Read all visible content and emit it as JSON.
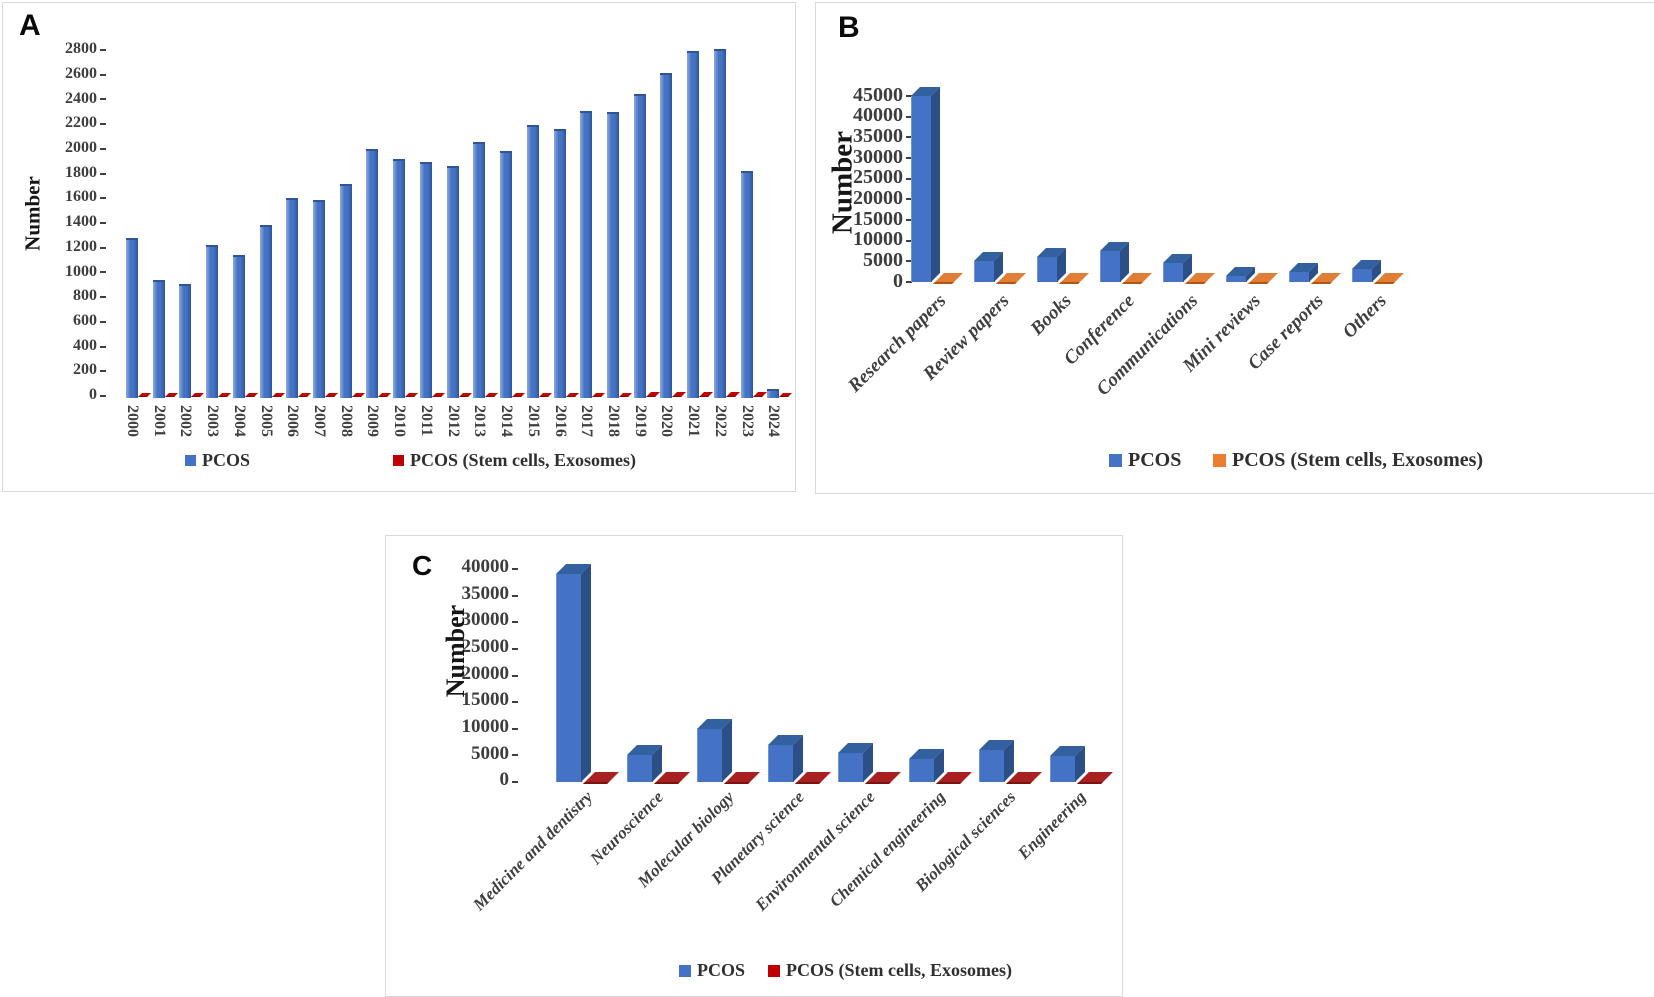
{
  "figure": {
    "panels": [
      "A",
      "B",
      "C"
    ],
    "y_axis_title": "Number",
    "legend_series_1": "PCOS",
    "legend_series_2": "PCOS (Stem cells, Exosomes)"
  },
  "colors": {
    "pcos_blue_front": "#4472C4",
    "pcos_blue_top": "#33619F",
    "pcos_blue_side": "#2B4F86",
    "stem_red": "#C00000",
    "stem_red_flat": "#A82020",
    "stem_red_flat_edge": "#7A1212",
    "stem_orange": "#ED7D31",
    "stem_orange_flat": "#E07E35",
    "stem_orange_flat_edge": "#B25514",
    "tick_text": "#3d3d3d",
    "panel_border": "#d9d9d9"
  },
  "chart_data": [
    {
      "id": "A",
      "panel_label": "A",
      "type": "bar",
      "ylabel": "Number",
      "xlabel": "",
      "ylim": [
        0,
        2800
      ],
      "ytick_step": 200,
      "grid": false,
      "legend_position": "bottom",
      "categories": [
        "2000",
        "2001",
        "2002",
        "2003",
        "2004",
        "2005",
        "2006",
        "2007",
        "2008",
        "2009",
        "2010",
        "2011",
        "2012",
        "2013",
        "2014",
        "2015",
        "2016",
        "2017",
        "2018",
        "2019",
        "2020",
        "2021",
        "2022",
        "2023",
        "2024"
      ],
      "series": [
        {
          "name": "PCOS",
          "color": "#4472C4",
          "values": [
            1280,
            940,
            910,
            1225,
            1145,
            1380,
            1600,
            1590,
            1715,
            2000,
            1915,
            1895,
            1865,
            2055,
            1980,
            2190,
            2160,
            2310,
            2300,
            2440,
            2610,
            2790,
            2805,
            1820,
            60
          ]
        },
        {
          "name": "PCOS (Stem cells, Exosomes)",
          "color": "#C00000",
          "values": [
            15,
            15,
            15,
            15,
            15,
            15,
            15,
            15,
            15,
            20,
            20,
            20,
            20,
            20,
            20,
            20,
            20,
            25,
            25,
            30,
            30,
            35,
            35,
            35,
            10
          ]
        }
      ]
    },
    {
      "id": "B",
      "panel_label": "B",
      "type": "bar",
      "ylabel": "Number",
      "xlabel": "",
      "ylim": [
        0,
        45000
      ],
      "ytick_step": 5000,
      "grid": false,
      "legend_position": "bottom",
      "categories": [
        "Research papers",
        "Review papers",
        "Books",
        "Conference",
        "Communications",
        "Mini reviews",
        "Case reports",
        "Others"
      ],
      "series": [
        {
          "name": "PCOS",
          "color": "#4472C4",
          "values": [
            45000,
            5100,
            6000,
            7500,
            4500,
            1500,
            2500,
            3200
          ]
        },
        {
          "name": "PCOS (Stem cells, Exosomes)",
          "color": "#ED7D31",
          "values": [
            200,
            80,
            60,
            100,
            60,
            30,
            40,
            50
          ]
        }
      ]
    },
    {
      "id": "C",
      "panel_label": "C",
      "type": "bar",
      "ylabel": "Number",
      "xlabel": "",
      "ylim": [
        0,
        40000
      ],
      "ytick_step": 5000,
      "grid": false,
      "legend_position": "bottom",
      "categories": [
        "Medicine and dentistry",
        "Neuroscience",
        "Molecular biology",
        "Planetary science",
        "Environmental science",
        "Chemical engineering",
        "Biological sciences",
        "Engineering"
      ],
      "series": [
        {
          "name": "PCOS",
          "color": "#4472C4",
          "values": [
            39000,
            5000,
            10000,
            7000,
            5500,
            4300,
            6000,
            4800
          ]
        },
        {
          "name": "PCOS (Stem cells, Exosomes)",
          "color": "#C00000",
          "values": [
            300,
            60,
            120,
            70,
            60,
            40,
            60,
            50
          ]
        }
      ]
    }
  ]
}
